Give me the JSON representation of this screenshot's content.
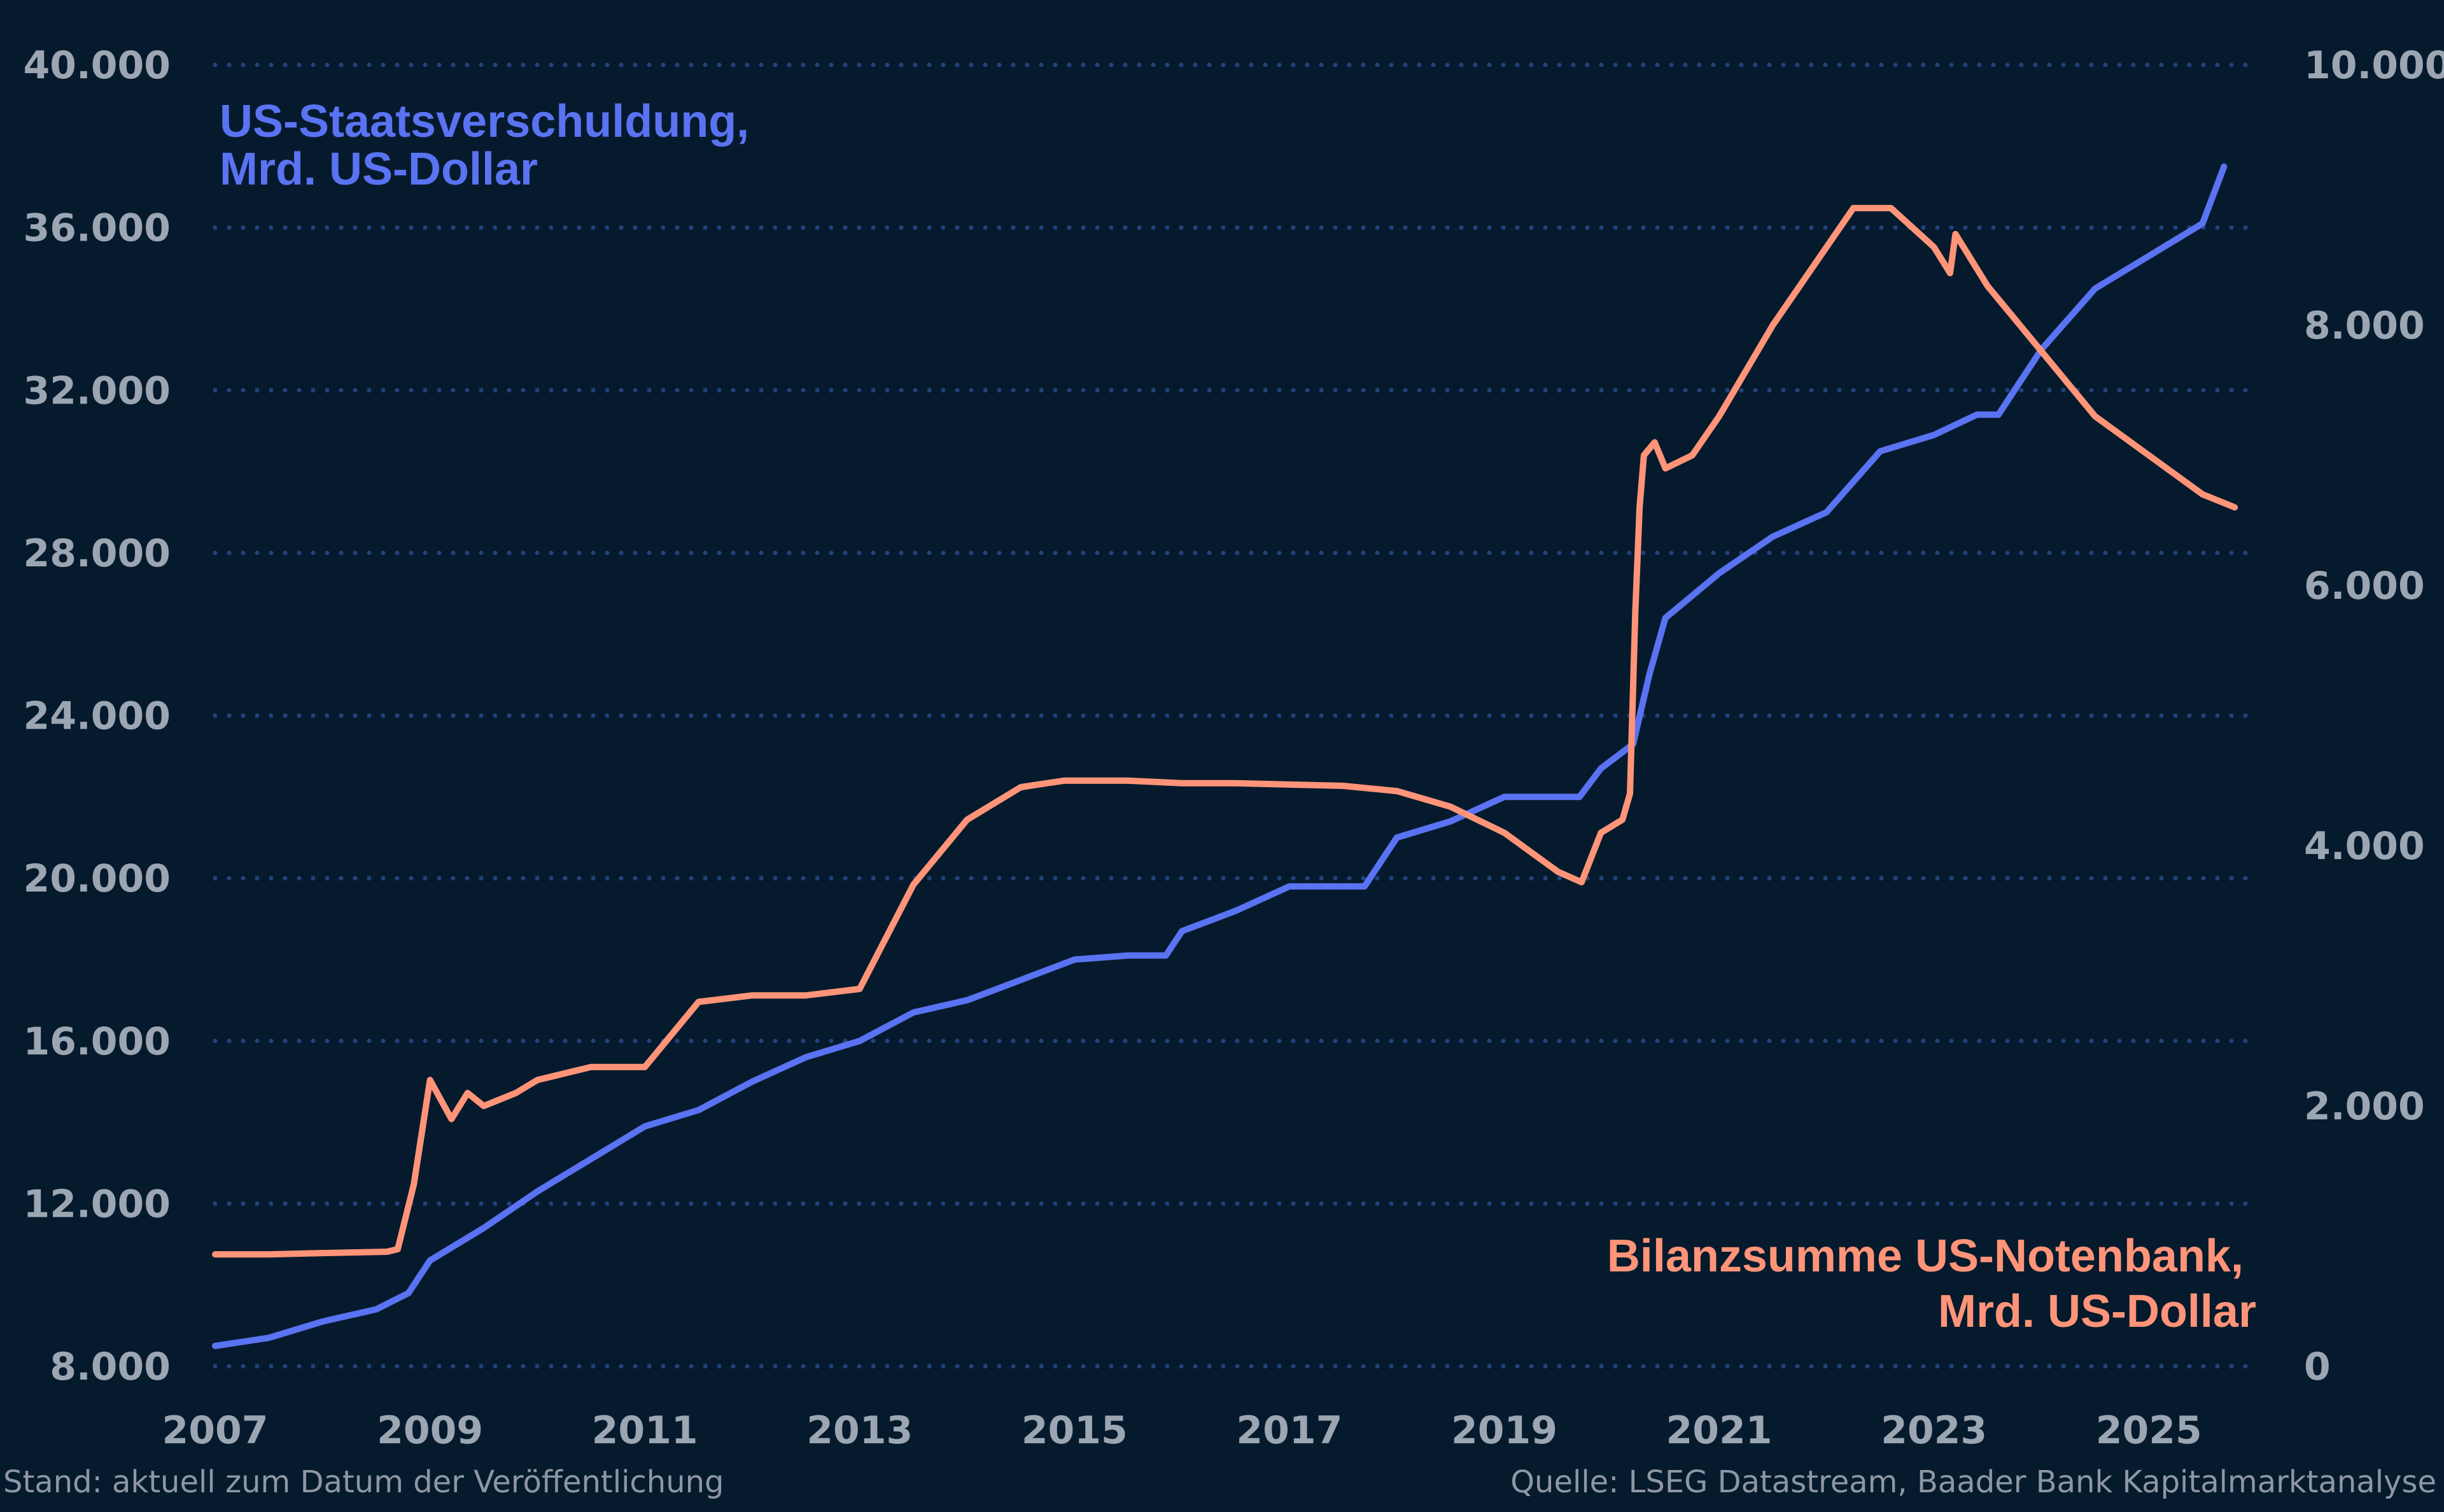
{
  "colors": {
    "background": "#061a2d",
    "grid": "#21427d",
    "tick_text": "#9ba6b2",
    "debt_line": "#5a73f2",
    "fed_line": "#ff9478",
    "footer_text": "#8d97a3"
  },
  "footer": {
    "left": "Stand: aktuell zum Datum der Veröffentlichung",
    "right": "Quelle: LSEG Datastream, Baader Bank Kapitalmarktanalyse"
  },
  "chart_data": {
    "type": "line",
    "grid": "horizontal dotted",
    "x_range": [
      2007.0,
      2026.0
    ],
    "x_ticks": [
      2007,
      2009,
      2011,
      2013,
      2015,
      2017,
      2019,
      2021,
      2023,
      2025
    ],
    "x_tick_labels": [
      "2007",
      "2009",
      "2011",
      "2013",
      "2015",
      "2017",
      "2019",
      "2021",
      "2023",
      "2025"
    ],
    "y_left": {
      "range": [
        8000,
        40000
      ],
      "ticks": [
        8000,
        12000,
        16000,
        20000,
        24000,
        28000,
        32000,
        36000,
        40000
      ],
      "tick_labels": [
        "8.000",
        "12.000",
        "16.000",
        "20.000",
        "24.000",
        "28.000",
        "32.000",
        "36.000",
        "40.000"
      ]
    },
    "y_right": {
      "range": [
        0,
        10000
      ],
      "ticks": [
        0,
        2000,
        4000,
        6000,
        8000,
        10000
      ],
      "tick_labels": [
        "0",
        "2.000",
        "4.000",
        "6.000",
        "8.000",
        "10.000"
      ]
    },
    "series": [
      {
        "name": "US-Staatsverschuldung, Mrd. US-Dollar",
        "label_lines": [
          "US-Staatsverschuldung,",
          "Mrd. US-Dollar"
        ],
        "label_position": "top-left",
        "axis": "left",
        "color": "#5a73f2",
        "x": [
          2007.0,
          2007.5,
          2008.0,
          2008.5,
          2008.8,
          2009.0,
          2009.5,
          2010.0,
          2010.5,
          2011.0,
          2011.5,
          2012.0,
          2012.5,
          2013.0,
          2013.5,
          2014.0,
          2014.5,
          2015.0,
          2015.5,
          2015.85,
          2016.0,
          2016.5,
          2017.0,
          2017.5,
          2017.7,
          2018.0,
          2018.5,
          2019.0,
          2019.5,
          2019.7,
          2019.9,
          2020.2,
          2020.35,
          2020.5,
          2021.0,
          2021.5,
          2022.0,
          2022.5,
          2023.0,
          2023.4,
          2023.6,
          2024.0,
          2024.5,
          2025.0,
          2025.5,
          2025.7
        ],
        "y": [
          8500,
          8700,
          9100,
          9400,
          9800,
          10600,
          11400,
          12300,
          13100,
          13900,
          14300,
          15000,
          15600,
          16000,
          16700,
          17000,
          17500,
          18000,
          18100,
          18100,
          18700,
          19200,
          19800,
          19800,
          19800,
          21000,
          21400,
          22000,
          22000,
          22000,
          22700,
          23300,
          25000,
          26400,
          27500,
          28400,
          29000,
          30500,
          30900,
          31400,
          31400,
          33000,
          34500,
          35300,
          36100,
          37500
        ]
      },
      {
        "name": "Bilanzsumme US-Notenbank, Mrd. US-Dollar",
        "label_lines": [
          "Bilanzsumme US-Notenbank,",
          "Mrd. US-Dollar"
        ],
        "label_position": "bottom-right",
        "axis": "right",
        "color": "#ff9478",
        "x": [
          2007.0,
          2007.5,
          2008.0,
          2008.6,
          2008.7,
          2008.85,
          2009.0,
          2009.2,
          2009.35,
          2009.5,
          2009.8,
          2010.0,
          2010.5,
          2011.0,
          2011.5,
          2012.0,
          2012.5,
          2013.0,
          2013.5,
          2014.0,
          2014.5,
          2014.9,
          2015.5,
          2016.0,
          2016.5,
          2017.0,
          2017.5,
          2018.0,
          2018.5,
          2019.0,
          2019.5,
          2019.72,
          2019.9,
          2020.1,
          2020.17,
          2020.22,
          2020.26,
          2020.3,
          2020.4,
          2020.5,
          2020.75,
          2021.0,
          2021.5,
          2022.0,
          2022.25,
          2022.6,
          2023.0,
          2023.15,
          2023.2,
          2023.5,
          2023.8,
          2024.0,
          2024.5,
          2025.0,
          2025.5,
          2025.8
        ],
        "y": [
          860,
          860,
          870,
          880,
          900,
          1400,
          2200,
          1900,
          2100,
          2000,
          2100,
          2200,
          2300,
          2300,
          2800,
          2850,
          2850,
          2900,
          3700,
          4200,
          4450,
          4500,
          4500,
          4480,
          4480,
          4470,
          4460,
          4420,
          4300,
          4100,
          3800,
          3720,
          4100,
          4200,
          4400,
          5800,
          6600,
          7000,
          7100,
          6900,
          7000,
          7300,
          8000,
          8600,
          8900,
          8900,
          8600,
          8400,
          8700,
          8300,
          8000,
          7800,
          7300,
          7000,
          6700,
          6600
        ]
      }
    ]
  }
}
